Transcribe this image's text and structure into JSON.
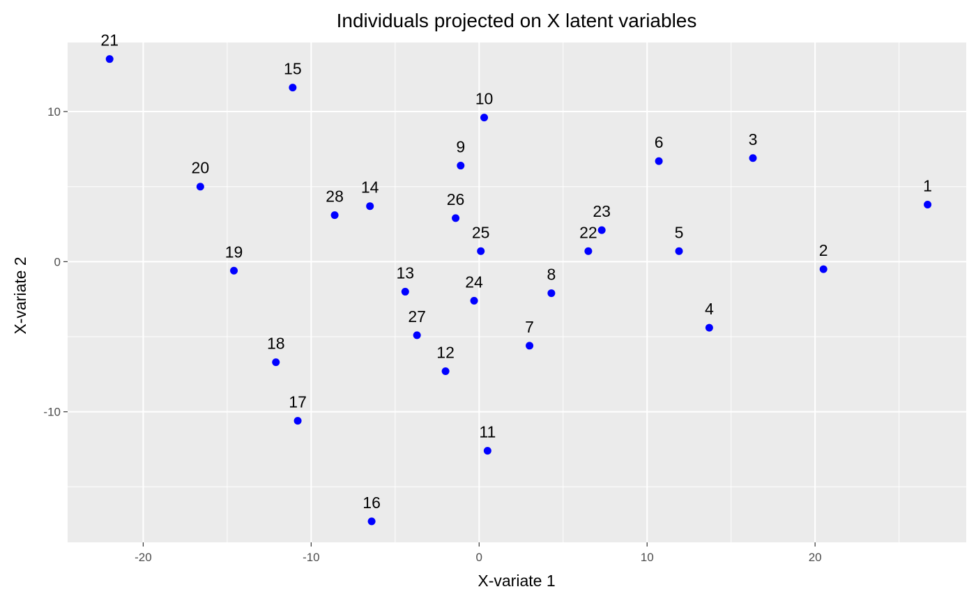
{
  "chart_data": {
    "type": "scatter",
    "title": "Individuals projected on X latent variables",
    "xlabel": "X-variate 1",
    "ylabel": "X-variate  2",
    "xlim": [
      -24.5,
      29
    ],
    "ylim": [
      -18.7,
      14.6
    ],
    "x_ticks": [
      -20,
      -10,
      0,
      10,
      20
    ],
    "y_ticks": [
      -10,
      0,
      10
    ],
    "x_tick_labels": [
      "-20",
      "-10",
      "0",
      "10",
      "20"
    ],
    "y_tick_labels": [
      "-10",
      "0",
      "10"
    ],
    "grid": true,
    "colors": {
      "panel_background": "#ebebeb",
      "grid": "#ffffff",
      "point": "#0000ff",
      "text": "#000000",
      "tick_text": "#4d4d4d",
      "tick_mark": "#333333"
    },
    "points": [
      {
        "label": "1",
        "x": 26.7,
        "y": 3.8
      },
      {
        "label": "2",
        "x": 20.5,
        "y": -0.5
      },
      {
        "label": "3",
        "x": 16.3,
        "y": 6.9
      },
      {
        "label": "4",
        "x": 13.7,
        "y": -4.4
      },
      {
        "label": "5",
        "x": 11.9,
        "y": 0.7
      },
      {
        "label": "6",
        "x": 10.7,
        "y": 6.7
      },
      {
        "label": "7",
        "x": 3.0,
        "y": -5.6
      },
      {
        "label": "8",
        "x": 4.3,
        "y": -2.1
      },
      {
        "label": "9",
        "x": -1.1,
        "y": 6.4
      },
      {
        "label": "10",
        "x": 0.3,
        "y": 9.6
      },
      {
        "label": "11",
        "x": 0.5,
        "y": -12.6
      },
      {
        "label": "12",
        "x": -2.0,
        "y": -7.3
      },
      {
        "label": "13",
        "x": -4.4,
        "y": -2.0
      },
      {
        "label": "14",
        "x": -6.5,
        "y": 3.7
      },
      {
        "label": "15",
        "x": -11.1,
        "y": 11.6
      },
      {
        "label": "16",
        "x": -6.4,
        "y": -17.3
      },
      {
        "label": "17",
        "x": -10.8,
        "y": -10.6
      },
      {
        "label": "18",
        "x": -12.1,
        "y": -6.7
      },
      {
        "label": "19",
        "x": -14.6,
        "y": -0.6
      },
      {
        "label": "20",
        "x": -16.6,
        "y": 5.0
      },
      {
        "label": "21",
        "x": -22.0,
        "y": 13.5
      },
      {
        "label": "22",
        "x": 6.5,
        "y": 0.7
      },
      {
        "label": "23",
        "x": 7.3,
        "y": 2.1
      },
      {
        "label": "24",
        "x": -0.3,
        "y": -2.6
      },
      {
        "label": "25",
        "x": 0.1,
        "y": 0.7
      },
      {
        "label": "26",
        "x": -1.4,
        "y": 2.9
      },
      {
        "label": "27",
        "x": -3.7,
        "y": -4.9
      },
      {
        "label": "28",
        "x": -8.6,
        "y": 3.1
      }
    ]
  }
}
